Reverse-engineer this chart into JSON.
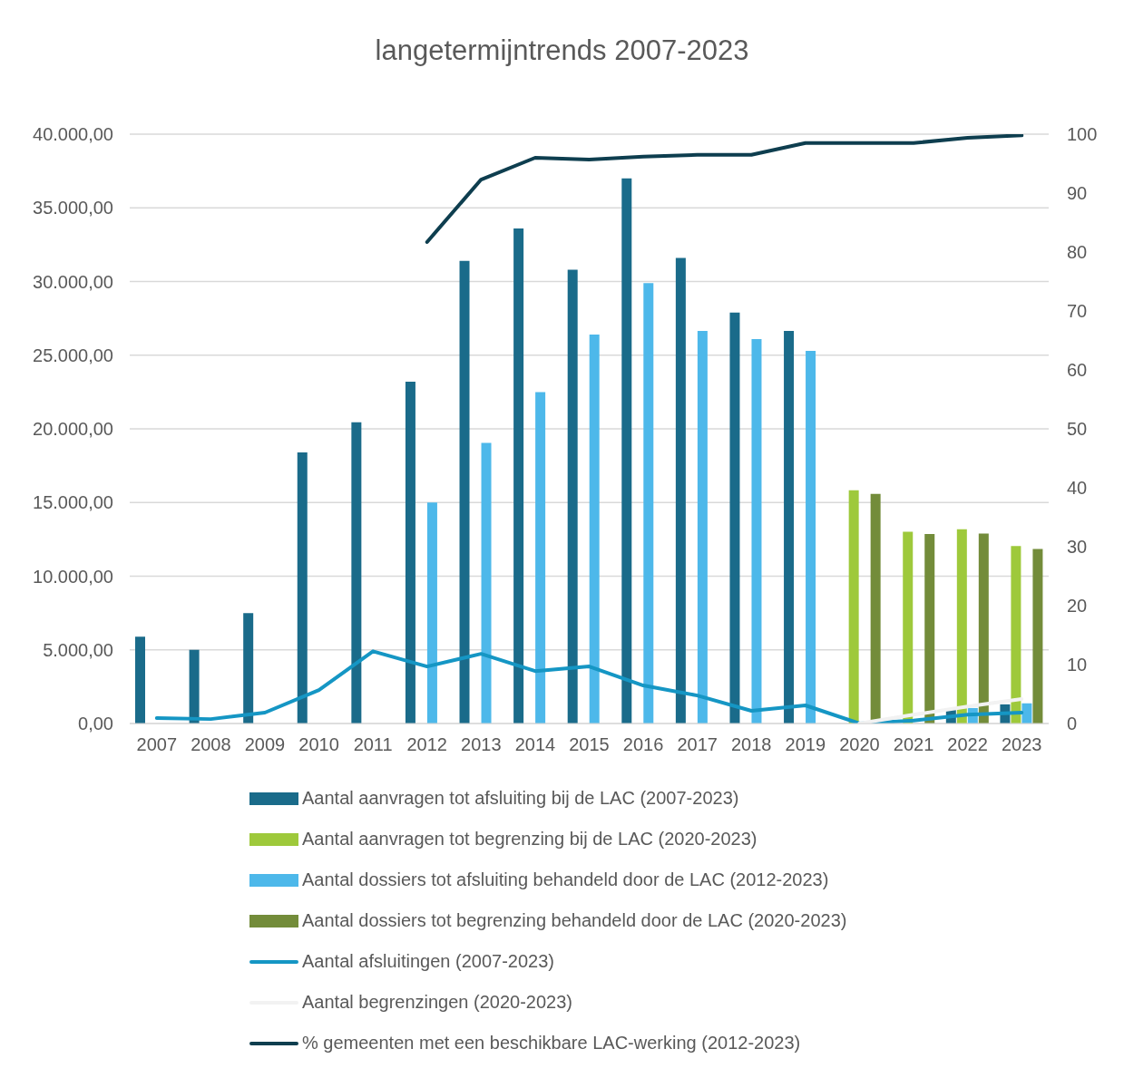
{
  "chart_data": {
    "type": "bar",
    "title": "langetermijntrends 2007-2023",
    "categories": [
      "2007",
      "2008",
      "2009",
      "2010",
      "2011",
      "2012",
      "2013",
      "2014",
      "2015",
      "2016",
      "2017",
      "2018",
      "2019",
      "2020",
      "2021",
      "2022",
      "2023"
    ],
    "series": [
      {
        "name": "Aantal aanvragen tot afsluiting bij de LAC (2007-2023)",
        "color": "#1a6b8a",
        "values": [
          5900,
          5000,
          7500,
          18400,
          20450,
          23200,
          31400,
          33600,
          30800,
          37000,
          31600,
          27900,
          26650,
          0,
          0,
          920,
          1300
        ]
      },
      {
        "name": "Aantal aanvragen tot begrenzing bij de LAC (2020-2023)",
        "color": "#9ec93b",
        "values": [
          null,
          null,
          null,
          null,
          null,
          null,
          null,
          null,
          null,
          null,
          null,
          null,
          null,
          15830,
          13020,
          13190,
          12040
        ]
      },
      {
        "name": "Aantal dossiers tot afsluiting behandeld door de LAC (2012-2023)",
        "color": "#4db8ea",
        "values": [
          null,
          null,
          null,
          null,
          null,
          15000,
          19050,
          22500,
          26400,
          29900,
          26650,
          26100,
          25300,
          0,
          0,
          1050,
          1370
        ]
      },
      {
        "name": "Aantal dossiers tot begrenzing behandeld door de LAC (2020-2023)",
        "color": "#738c3a",
        "values": [
          null,
          null,
          null,
          null,
          null,
          null,
          null,
          null,
          null,
          null,
          null,
          null,
          null,
          15580,
          12860,
          12900,
          11850
        ]
      },
      {
        "name": "Aantal afsluitingen (2007-2023)",
        "type": "line",
        "color": "#1596c4",
        "values": [
          370,
          300,
          740,
          2270,
          4900,
          3870,
          4730,
          3560,
          3870,
          2580,
          1900,
          860,
          1230,
          0,
          200,
          600,
          740
        ]
      },
      {
        "name": "Aantal begrenzingen (2020-2023)",
        "type": "line",
        "color": "#f2f2f2",
        "values": [
          null,
          null,
          null,
          null,
          null,
          null,
          null,
          null,
          null,
          null,
          null,
          null,
          null,
          0,
          600,
          1150,
          1660
        ]
      },
      {
        "name": "% gemeenten met een beschikbare LAC-werking (2012-2023)",
        "type": "line",
        "axis": "y2",
        "color": "#0e3e4f",
        "values": [
          null,
          null,
          null,
          null,
          null,
          81.7,
          92.3,
          96.0,
          95.7,
          96.2,
          96.5,
          96.5,
          98.5,
          98.5,
          98.5,
          99.4,
          99.8
        ]
      }
    ],
    "ylim": [
      0,
      40000
    ],
    "yticks": [
      {
        "value": 0,
        "label": "0,00"
      },
      {
        "value": 5000,
        "label": "5.000,00"
      },
      {
        "value": 10000,
        "label": "10.000,00"
      },
      {
        "value": 15000,
        "label": "15.000,00"
      },
      {
        "value": 20000,
        "label": "20.000,00"
      },
      {
        "value": 25000,
        "label": "25.000,00"
      },
      {
        "value": 30000,
        "label": "30.000,00"
      },
      {
        "value": 35000,
        "label": "35.000,00"
      },
      {
        "value": 40000,
        "label": "40.000,00"
      }
    ],
    "y2lim": [
      0,
      100
    ],
    "y2ticks": [
      0,
      10,
      20,
      30,
      40,
      50,
      60,
      70,
      80,
      90,
      100
    ],
    "grid": "y",
    "legend": "bottom",
    "marker": "none",
    "line_style": "solid"
  }
}
